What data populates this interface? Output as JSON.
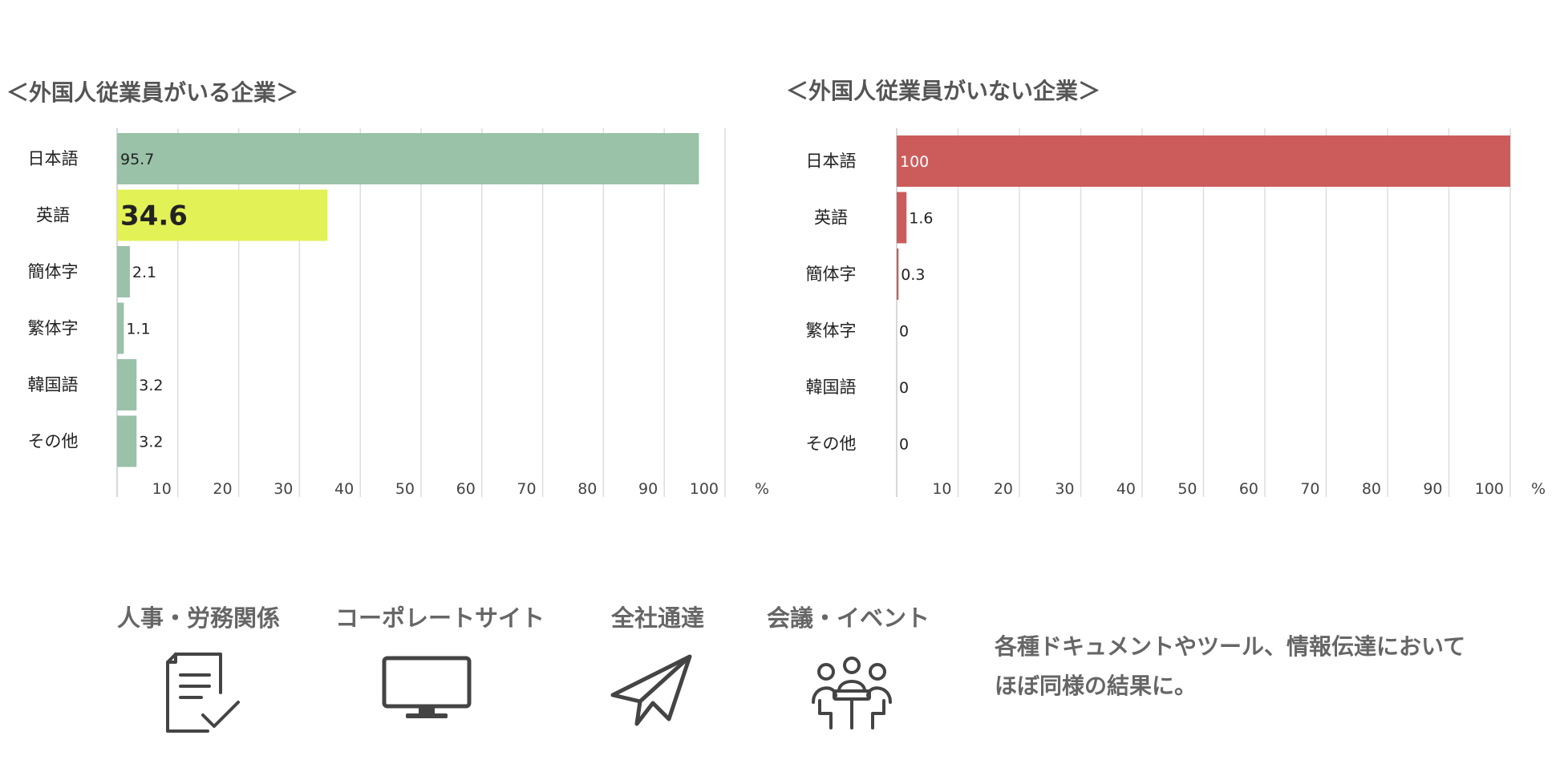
{
  "chart_data": [
    {
      "type": "bar",
      "orientation": "horizontal",
      "title": "＜外国人従業員がいる企業＞",
      "categories": [
        "日本語",
        "英語",
        "簡体字",
        "繁体字",
        "韓国語",
        "その他"
      ],
      "values": [
        95.7,
        34.6,
        2.1,
        1.1,
        3.2,
        3.2
      ],
      "value_labels": [
        "95.7",
        "34.6",
        "2.1",
        "1.1",
        "3.2",
        "3.2"
      ],
      "highlight_index": 1,
      "xlim": [
        0,
        100
      ],
      "x_ticks": [
        10,
        20,
        30,
        40,
        50,
        60,
        70,
        80,
        90,
        100
      ],
      "unit": "%",
      "grid": true,
      "bar_color": "#99c2a9",
      "highlight_color": "#e2f155"
    },
    {
      "type": "bar",
      "orientation": "horizontal",
      "title": "＜外国人従業員がいない企業＞",
      "categories": [
        "日本語",
        "英語",
        "簡体字",
        "繁体字",
        "韓国語",
        "その他"
      ],
      "values": [
        100,
        1.6,
        0.3,
        0,
        0,
        0
      ],
      "value_labels": [
        "100",
        "1.6",
        "0.3",
        "0",
        "0",
        "0"
      ],
      "xlim": [
        0,
        100
      ],
      "x_ticks": [
        10,
        20,
        30,
        40,
        50,
        60,
        70,
        80,
        90,
        100
      ],
      "unit": "%",
      "grid": true,
      "bar_color": "#cc5c5c"
    }
  ],
  "icons": [
    {
      "label": "人事・労務関係",
      "icon": "document-check-icon"
    },
    {
      "label": "コーポレートサイト",
      "icon": "monitor-icon"
    },
    {
      "label": "全社通達",
      "icon": "paper-plane-icon"
    },
    {
      "label": "会議・イベント",
      "icon": "meeting-icon"
    }
  ],
  "summary": {
    "line1": "各種ドキュメントやツール、情報伝達において",
    "line2": "ほぼ同様の結果に。"
  },
  "colors": {
    "grid": "#dddddd",
    "text": "#222222",
    "heading": "#555555",
    "icon": "#444444"
  }
}
